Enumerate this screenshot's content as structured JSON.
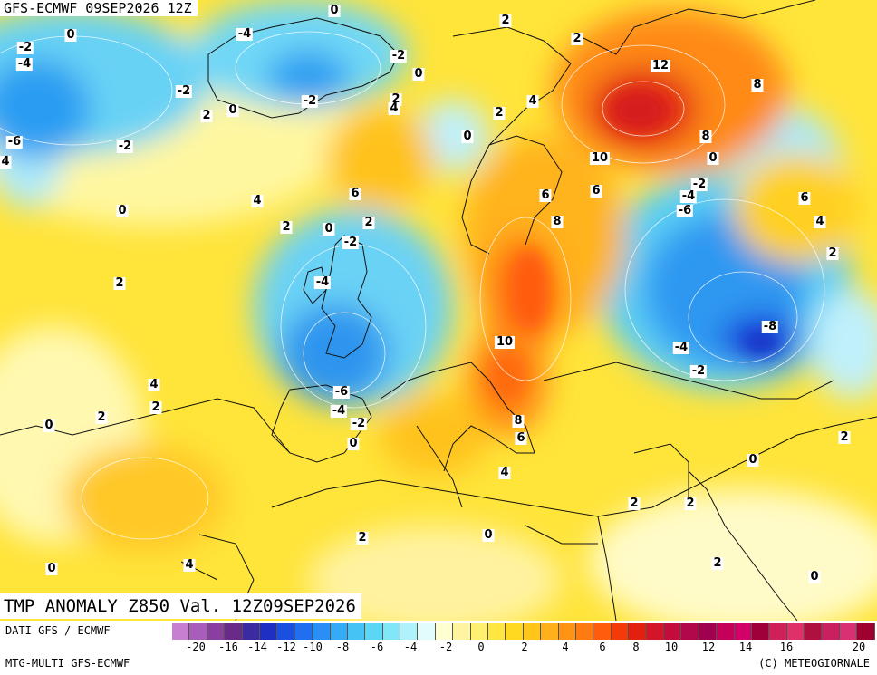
{
  "header": {
    "model_run": "GFS-ECMWF 09SEP2026 12Z"
  },
  "map_title": "TMP ANOMALY Z850 Val. 12Z09SEP2026",
  "footer": {
    "data_source": "DATI GFS / ECMWF",
    "model_label": "MTG-MULTI GFS-ECMWF",
    "copyright": "(C) METEOGIORNALE"
  },
  "color_scale": {
    "colors": [
      "#c77fd1",
      "#a95dba",
      "#8a3fa0",
      "#6a2a8a",
      "#3c2aa0",
      "#1e2fc2",
      "#1a4fe0",
      "#1f6ff0",
      "#2a8ff5",
      "#35aaf5",
      "#45c3f5",
      "#5ad7f5",
      "#80e6f8",
      "#b0f2fb",
      "#e2fbfb",
      "#ffffd0",
      "#fff5a0",
      "#fff070",
      "#ffe640",
      "#ffd820",
      "#ffc61a",
      "#ffb01a",
      "#ff9414",
      "#ff7a10",
      "#ff5c0c",
      "#f53a0a",
      "#e3200f",
      "#d41428",
      "#c40c3c",
      "#b00848",
      "#a00050",
      "#c4005a",
      "#d4006a",
      "#a0003a",
      "#d0205a",
      "#e0306a",
      "#b01040",
      "#c82060",
      "#d83070",
      "#a00030"
    ],
    "ticks": [
      "-20",
      "-16",
      "-14",
      "-12",
      "-10",
      "-8",
      "-6",
      "-4",
      "-2",
      "0",
      "2",
      "4",
      "6",
      "8",
      "10",
      "12",
      "14",
      "16",
      "20"
    ]
  },
  "contour_labels": [
    {
      "v": "0"
    },
    {
      "v": "2"
    },
    {
      "v": "2"
    },
    {
      "v": "-2"
    },
    {
      "v": "-4"
    },
    {
      "v": "0"
    },
    {
      "v": "-4"
    },
    {
      "v": "-2"
    },
    {
      "v": "0"
    },
    {
      "v": "-2"
    },
    {
      "v": "2"
    },
    {
      "v": "0"
    },
    {
      "v": "-2"
    },
    {
      "v": "2"
    },
    {
      "v": "4"
    },
    {
      "v": "4"
    },
    {
      "v": "2"
    },
    {
      "v": "12"
    },
    {
      "v": "8"
    },
    {
      "v": "-6"
    },
    {
      "v": "4"
    },
    {
      "v": "-2"
    },
    {
      "v": "0"
    },
    {
      "v": "10"
    },
    {
      "v": "8"
    },
    {
      "v": "0"
    },
    {
      "v": "6"
    },
    {
      "v": "6"
    },
    {
      "v": "6"
    },
    {
      "v": "-2"
    },
    {
      "v": "-4"
    },
    {
      "v": "-6"
    },
    {
      "v": "6"
    },
    {
      "v": "4"
    },
    {
      "v": "4"
    },
    {
      "v": "0"
    },
    {
      "v": "2"
    },
    {
      "v": "0"
    },
    {
      "v": "2"
    },
    {
      "v": "-2"
    },
    {
      "v": "8"
    },
    {
      "v": "2"
    },
    {
      "v": "2"
    },
    {
      "v": "-4"
    },
    {
      "v": "10"
    },
    {
      "v": "-8"
    },
    {
      "v": "-4"
    },
    {
      "v": "-2"
    },
    {
      "v": "4"
    },
    {
      "v": "2"
    },
    {
      "v": "-6"
    },
    {
      "v": "-4"
    },
    {
      "v": "-2"
    },
    {
      "v": "0"
    },
    {
      "v": "8"
    },
    {
      "v": "6"
    },
    {
      "v": "0"
    },
    {
      "v": "2"
    },
    {
      "v": "4"
    },
    {
      "v": "2"
    },
    {
      "v": "2"
    },
    {
      "v": "0"
    },
    {
      "v": "2"
    },
    {
      "v": "4"
    },
    {
      "v": "0"
    },
    {
      "v": "2"
    },
    {
      "v": "0"
    },
    {
      "v": "2"
    }
  ]
}
